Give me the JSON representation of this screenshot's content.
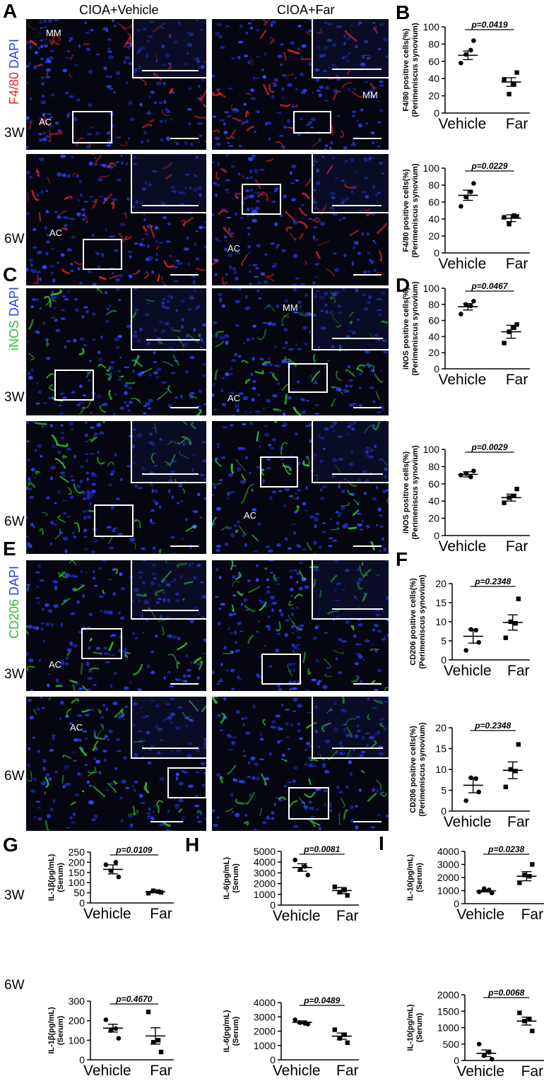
{
  "panel_letters": [
    "A",
    "B",
    "C",
    "D",
    "E",
    "F",
    "G",
    "H",
    "I"
  ],
  "column_titles": {
    "left": "CIOA+Vehicle",
    "right": "CIOA+Far"
  },
  "stains": {
    "f480": {
      "marker": "F4/80",
      "counter": "DAPI",
      "marker_color": "#e8242c",
      "counter_color": "#2a3cf0"
    },
    "inos": {
      "marker": "iNOS",
      "counter": "DAPI",
      "marker_color": "#2fbf2f",
      "counter_color": "#2a3cf0"
    },
    "cd206": {
      "marker": "CD206",
      "counter": "DAPI",
      "marker_color": "#2fbf2f",
      "counter_color": "#2a3cf0"
    }
  },
  "timepoints": [
    "3W",
    "6W"
  ],
  "image_labels": {
    "A_3W_left": [
      "MM",
      "AC"
    ],
    "A_3W_right": [
      "MM"
    ],
    "A_6W_left": [
      "AC"
    ],
    "A_6W_right": [
      "AC"
    ],
    "C_3W_right": [
      "MM",
      "AC"
    ],
    "C_6W_right": [
      "AC"
    ],
    "E_3W_left": [
      "AC"
    ],
    "E_6W_left": [
      "AC"
    ]
  },
  "colors": {
    "f480_red": "#e8242c",
    "green": "#39d23a",
    "dapi_blue": "#2a3cf0",
    "background": "#05060f"
  },
  "chart_data": [
    {
      "id": "B_3W",
      "type": "scatter",
      "categories": [
        "Vehicle",
        "Far"
      ],
      "ylabel": "F4/80 positive cells(%)",
      "ylabel2": "(Perimeniscus synovium)",
      "ylim": [
        0,
        100
      ],
      "yticks": [
        0,
        20,
        40,
        60,
        80,
        100
      ],
      "pvalue": "p=0.0419",
      "mean": [
        67,
        36
      ],
      "sem": [
        5,
        5
      ],
      "series": [
        {
          "values": [
            [
              58,
              73,
              68,
              84
            ]
          ]
        },
        {
          "values": [
            [
              39,
              34,
              22,
              47
            ]
          ]
        }
      ]
    },
    {
      "id": "B_6W",
      "type": "scatter",
      "categories": [
        "Vehicle",
        "Far"
      ],
      "ylabel": "F4/80 positive cells(%)",
      "ylabel2": "(Perimeniscus synovium)",
      "ylim": [
        0,
        100
      ],
      "yticks": [
        0,
        20,
        40,
        60,
        80,
        100
      ],
      "pvalue": "p=0.0229",
      "mean": [
        68,
        41
      ],
      "sem": [
        6,
        4
      ],
      "series": [
        {
          "values": [
            [
              55,
              72,
              66,
              82
            ]
          ]
        },
        {
          "values": [
            [
              42,
              44,
              34,
              43
            ]
          ]
        }
      ]
    },
    {
      "id": "D_3W",
      "type": "scatter",
      "categories": [
        "Vehicle",
        "Far"
      ],
      "ylabel": "iNOS positive cells(%)",
      "ylabel2": "(Perimeniscus synovium)",
      "ylim": [
        0,
        100
      ],
      "yticks": [
        0,
        20,
        40,
        60,
        80,
        100
      ],
      "pvalue": "p=0.0467",
      "mean": [
        77,
        46
      ],
      "sem": [
        4,
        8
      ],
      "series": [
        {
          "values": [
            [
              68,
              78,
              80,
              84
            ]
          ]
        },
        {
          "values": [
            [
              32,
              51,
              46,
              55
            ]
          ]
        }
      ]
    },
    {
      "id": "D_6W",
      "type": "scatter",
      "categories": [
        "Vehicle",
        "Far"
      ],
      "ylabel": "iNOS positive cells(%)",
      "ylabel2": "(Perimeniscus synovium)",
      "ylim": [
        0,
        100
      ],
      "yticks": [
        0,
        20,
        40,
        60,
        80,
        100
      ],
      "pvalue": "p=0.0029",
      "mean": [
        71,
        44
      ],
      "sem": [
        3,
        4
      ],
      "series": [
        {
          "values": [
            [
              70,
              68,
              72,
              75
            ]
          ]
        },
        {
          "values": [
            [
              38,
              46,
              44,
              54
            ]
          ]
        }
      ]
    },
    {
      "id": "F_3W",
      "type": "scatter",
      "categories": [
        "Vehicle",
        "Far"
      ],
      "ylabel": "CD206 positive cells(%)",
      "ylabel2": "(Perimeniscus synovium)",
      "ylim": [
        0,
        20
      ],
      "yticks": [
        0,
        5,
        10,
        15,
        20
      ],
      "pvalue": "p=0.2348",
      "mean": [
        6.2,
        9.8
      ],
      "sem": [
        1.8,
        2.0
      ],
      "series": [
        {
          "values": [
            [
              2.5,
              7.8,
              8.0,
              4.6
            ]
          ]
        },
        {
          "values": [
            [
              5.8,
              9.6,
              10.0,
              16.0
            ]
          ]
        }
      ]
    },
    {
      "id": "F_6W",
      "type": "scatter",
      "categories": [
        "Vehicle",
        "Far"
      ],
      "ylabel": "CD206 positive cells(%)",
      "ylabel2": "(Perimeniscus synovium)",
      "ylim": [
        0,
        20
      ],
      "yticks": [
        0,
        5,
        10,
        15,
        20
      ],
      "pvalue": "p=0.2348",
      "mean": [
        6.2,
        9.8
      ],
      "sem": [
        1.8,
        2.0
      ],
      "series": [
        {
          "values": [
            [
              2.5,
              7.8,
              8.0,
              4.6
            ]
          ]
        },
        {
          "values": [
            [
              5.8,
              9.6,
              10.0,
              16.0
            ]
          ]
        }
      ]
    },
    {
      "id": "G_3W",
      "type": "scatter",
      "categories": [
        "Vehicle",
        "Far"
      ],
      "ylabel": "IL-1β(pg/mL)",
      "ylabel2": "(Serum)",
      "ylim": [
        0,
        250
      ],
      "yticks": [
        0,
        50,
        100,
        150,
        200,
        250
      ],
      "pvalue": "p=0.0109",
      "mean": [
        165,
        55
      ],
      "sem": [
        22,
        5
      ],
      "series": [
        {
          "values": [
            [
              188,
              200,
              158,
              128
            ]
          ]
        },
        {
          "values": [
            [
              48,
              56,
              60,
              52
            ]
          ]
        }
      ]
    },
    {
      "id": "G_6W",
      "type": "scatter",
      "categories": [
        "Vehicle",
        "Far"
      ],
      "ylabel": "IL-1β(pg/mL)",
      "ylabel2": "(Serum)",
      "ylim": [
        0,
        300
      ],
      "yticks": [
        0,
        100,
        200,
        300
      ],
      "pvalue": "p=0.4670",
      "mean": [
        162,
        122
      ],
      "sem": [
        20,
        42
      ],
      "series": [
        {
          "values": [
            [
              205,
              160,
              150,
              110
            ]
          ]
        },
        {
          "values": [
            [
              245,
              100,
              90,
              40
            ]
          ]
        }
      ]
    },
    {
      "id": "H_3W",
      "type": "scatter",
      "categories": [
        "Vehicle",
        "Far"
      ],
      "ylabel": "IL-6(pg/mL)",
      "ylabel2": "(Serum)",
      "ylim": [
        0,
        5000
      ],
      "yticks": [
        0,
        1000,
        2000,
        3000,
        4000,
        5000
      ],
      "pvalue": "p=0.0081",
      "mean": [
        3500,
        1350
      ],
      "sem": [
        350,
        280
      ],
      "series": [
        {
          "values": [
            [
              4200,
              3600,
              3300,
              2800
            ]
          ]
        },
        {
          "values": [
            [
              1700,
              1400,
              1200,
              900
            ]
          ]
        }
      ]
    },
    {
      "id": "H_6W",
      "type": "scatter",
      "categories": [
        "Vehicle",
        "Far"
      ],
      "ylabel": "IL-6(pg/mL)",
      "ylabel2": "(Serum)",
      "ylim": [
        0,
        4000
      ],
      "yticks": [
        0,
        1000,
        2000,
        3000,
        4000
      ],
      "pvalue": "p=0.0489",
      "mean": [
        2620,
        1650
      ],
      "sem": [
        100,
        220
      ],
      "series": [
        {
          "values": [
            [
              2800,
              2550,
              2600,
              2500
            ]
          ]
        },
        {
          "values": [
            [
              2100,
              1750,
              1500,
              1200
            ]
          ]
        }
      ]
    },
    {
      "id": "I_3W",
      "type": "scatter",
      "categories": [
        "Vehicle",
        "Far"
      ],
      "ylabel": "IL-10(pg/mL)",
      "ylabel2": "(Serum)",
      "ylim": [
        0,
        4000
      ],
      "yticks": [
        0,
        1000,
        2000,
        3000,
        4000
      ],
      "pvalue": "p=0.0238",
      "mean": [
        980,
        2100
      ],
      "sem": [
        80,
        350
      ],
      "series": [
        {
          "values": [
            [
              900,
              1050,
              1150,
              820
            ]
          ]
        },
        {
          "values": [
            [
              1600,
              2100,
              2200,
              3000
            ]
          ]
        }
      ]
    },
    {
      "id": "I_6W",
      "type": "scatter",
      "categories": [
        "Vehicle",
        "Far"
      ],
      "ylabel": "IL-10(pg/mL)",
      "ylabel2": "(Serum)",
      "ylim": [
        0,
        2000
      ],
      "yticks": [
        0,
        500,
        1000,
        1500,
        2000
      ],
      "pvalue": "p=0.0068",
      "mean": [
        220,
        1200
      ],
      "sem": [
        100,
        120
      ],
      "series": [
        {
          "values": [
            [
              500,
              250,
              150,
              40
            ]
          ]
        },
        {
          "values": [
            [
              1450,
              1250,
              1200,
              900
            ]
          ]
        }
      ]
    }
  ]
}
